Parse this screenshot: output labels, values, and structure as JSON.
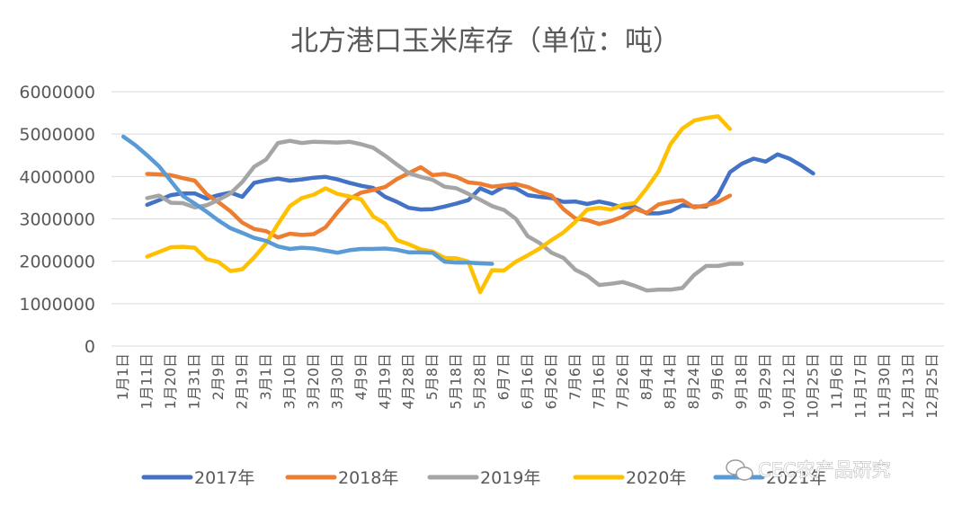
{
  "chart_data": {
    "type": "line",
    "title": "北方港口玉米库存（单位：吨）",
    "xlabel": "",
    "ylabel": "",
    "ylim": [
      0,
      6000000
    ],
    "yticks": [
      0,
      1000000,
      2000000,
      3000000,
      4000000,
      5000000,
      6000000
    ],
    "ytick_labels": [
      "0",
      "1000000",
      "2000000",
      "3000000",
      "4000000",
      "5000000",
      "6000000"
    ],
    "grid": true,
    "legend_position": "bottom",
    "x": [
      "1月1日",
      "1月11日",
      "1月20日",
      "1月31日",
      "2月9日",
      "2月19日",
      "3月1日",
      "3月10日",
      "3月20日",
      "3月30日",
      "4月9日",
      "4月19日",
      "4月28日",
      "5月8日",
      "5月18日",
      "5月28日",
      "6月7日",
      "6月16日",
      "6月26日",
      "7月6日",
      "7月16日",
      "7月26日",
      "8月4日",
      "8月14日",
      "8月24日",
      "9月6日",
      "9月18日",
      "9月29日",
      "10月12日",
      "10月25日",
      "11月6日",
      "11月17日",
      "11月30日",
      "12月13日",
      "12月25日"
    ],
    "series": [
      {
        "name": "2017年",
        "color": "#4472C4",
        "points": [
          [
            1.0,
            3330000
          ],
          [
            1.5,
            3440000
          ],
          [
            2.0,
            3560000
          ],
          [
            2.5,
            3600000
          ],
          [
            3.0,
            3600000
          ],
          [
            3.5,
            3480000
          ],
          [
            4.0,
            3560000
          ],
          [
            4.5,
            3620000
          ],
          [
            5.0,
            3520000
          ],
          [
            5.5,
            3850000
          ],
          [
            6.0,
            3910000
          ],
          [
            6.5,
            3950000
          ],
          [
            7.0,
            3900000
          ],
          [
            7.5,
            3930000
          ],
          [
            8.0,
            3970000
          ],
          [
            8.5,
            3990000
          ],
          [
            9.0,
            3930000
          ],
          [
            9.5,
            3850000
          ],
          [
            10.0,
            3780000
          ],
          [
            10.5,
            3730000
          ],
          [
            11.0,
            3520000
          ],
          [
            11.5,
            3400000
          ],
          [
            12.0,
            3260000
          ],
          [
            12.5,
            3220000
          ],
          [
            13.0,
            3230000
          ],
          [
            13.5,
            3290000
          ],
          [
            14.0,
            3360000
          ],
          [
            14.5,
            3440000
          ],
          [
            15.0,
            3720000
          ],
          [
            15.5,
            3600000
          ],
          [
            16.0,
            3760000
          ],
          [
            16.5,
            3720000
          ],
          [
            17.0,
            3560000
          ],
          [
            17.5,
            3520000
          ],
          [
            18.0,
            3490000
          ],
          [
            18.5,
            3400000
          ],
          [
            19.0,
            3410000
          ],
          [
            19.5,
            3350000
          ],
          [
            20.0,
            3410000
          ],
          [
            20.5,
            3350000
          ],
          [
            21.0,
            3260000
          ],
          [
            21.5,
            3280000
          ],
          [
            22.0,
            3130000
          ],
          [
            22.5,
            3130000
          ],
          [
            23.0,
            3180000
          ],
          [
            23.5,
            3320000
          ],
          [
            24.0,
            3290000
          ],
          [
            24.5,
            3290000
          ],
          [
            25.0,
            3560000
          ],
          [
            25.5,
            4100000
          ],
          [
            26.0,
            4300000
          ],
          [
            26.5,
            4420000
          ],
          [
            27.0,
            4350000
          ],
          [
            27.5,
            4520000
          ],
          [
            28.0,
            4420000
          ],
          [
            28.5,
            4260000
          ],
          [
            29.0,
            4070000
          ]
        ]
      },
      {
        "name": "2018年",
        "color": "#ED7D31",
        "points": [
          [
            1.0,
            4060000
          ],
          [
            1.5,
            4050000
          ],
          [
            2.0,
            4030000
          ],
          [
            2.5,
            3960000
          ],
          [
            3.0,
            3900000
          ],
          [
            3.5,
            3580000
          ],
          [
            4.0,
            3390000
          ],
          [
            4.5,
            3180000
          ],
          [
            5.0,
            2910000
          ],
          [
            5.5,
            2760000
          ],
          [
            6.0,
            2710000
          ],
          [
            6.5,
            2560000
          ],
          [
            7.0,
            2650000
          ],
          [
            7.5,
            2620000
          ],
          [
            8.0,
            2640000
          ],
          [
            8.5,
            2800000
          ],
          [
            9.0,
            3150000
          ],
          [
            9.5,
            3470000
          ],
          [
            10.0,
            3620000
          ],
          [
            10.5,
            3680000
          ],
          [
            11.0,
            3750000
          ],
          [
            11.5,
            3940000
          ],
          [
            12.0,
            4080000
          ],
          [
            12.5,
            4220000
          ],
          [
            13.0,
            4030000
          ],
          [
            13.5,
            4060000
          ],
          [
            14.0,
            3990000
          ],
          [
            14.5,
            3860000
          ],
          [
            15.0,
            3830000
          ],
          [
            15.5,
            3760000
          ],
          [
            16.0,
            3790000
          ],
          [
            16.5,
            3820000
          ],
          [
            17.0,
            3750000
          ],
          [
            17.5,
            3630000
          ],
          [
            18.0,
            3550000
          ],
          [
            18.5,
            3230000
          ],
          [
            19.0,
            3010000
          ],
          [
            19.5,
            2970000
          ],
          [
            20.0,
            2880000
          ],
          [
            20.5,
            2950000
          ],
          [
            21.0,
            3050000
          ],
          [
            21.5,
            3240000
          ],
          [
            22.0,
            3140000
          ],
          [
            22.5,
            3340000
          ],
          [
            23.0,
            3400000
          ],
          [
            23.5,
            3440000
          ],
          [
            24.0,
            3270000
          ],
          [
            24.5,
            3320000
          ],
          [
            25.0,
            3400000
          ],
          [
            25.5,
            3550000
          ]
        ]
      },
      {
        "name": "2019年",
        "color": "#A5A5A5",
        "points": [
          [
            1.0,
            3490000
          ],
          [
            1.5,
            3550000
          ],
          [
            2.0,
            3380000
          ],
          [
            2.5,
            3370000
          ],
          [
            3.0,
            3270000
          ],
          [
            3.5,
            3320000
          ],
          [
            4.0,
            3450000
          ],
          [
            4.5,
            3600000
          ],
          [
            5.0,
            3870000
          ],
          [
            5.5,
            4230000
          ],
          [
            6.0,
            4400000
          ],
          [
            6.5,
            4790000
          ],
          [
            7.0,
            4840000
          ],
          [
            7.5,
            4790000
          ],
          [
            8.0,
            4820000
          ],
          [
            8.5,
            4810000
          ],
          [
            9.0,
            4800000
          ],
          [
            9.5,
            4820000
          ],
          [
            10.0,
            4760000
          ],
          [
            10.5,
            4680000
          ],
          [
            11.0,
            4490000
          ],
          [
            11.5,
            4280000
          ],
          [
            12.0,
            4080000
          ],
          [
            12.5,
            3990000
          ],
          [
            13.0,
            3920000
          ],
          [
            13.5,
            3760000
          ],
          [
            14.0,
            3720000
          ],
          [
            14.5,
            3590000
          ],
          [
            15.0,
            3450000
          ],
          [
            15.5,
            3300000
          ],
          [
            16.0,
            3210000
          ],
          [
            16.5,
            3000000
          ],
          [
            17.0,
            2590000
          ],
          [
            17.5,
            2430000
          ],
          [
            18.0,
            2200000
          ],
          [
            18.5,
            2080000
          ],
          [
            19.0,
            1800000
          ],
          [
            19.5,
            1660000
          ],
          [
            20.0,
            1440000
          ],
          [
            20.5,
            1470000
          ],
          [
            21.0,
            1510000
          ],
          [
            21.5,
            1420000
          ],
          [
            22.0,
            1310000
          ],
          [
            22.5,
            1330000
          ],
          [
            23.0,
            1330000
          ],
          [
            23.5,
            1370000
          ],
          [
            24.0,
            1680000
          ],
          [
            24.5,
            1890000
          ],
          [
            25.0,
            1890000
          ],
          [
            25.5,
            1940000
          ],
          [
            26.0,
            1940000
          ]
        ]
      },
      {
        "name": "2020年",
        "color": "#FFC000",
        "points": [
          [
            1.0,
            2110000
          ],
          [
            1.5,
            2220000
          ],
          [
            2.0,
            2330000
          ],
          [
            2.5,
            2340000
          ],
          [
            3.0,
            2320000
          ],
          [
            3.5,
            2050000
          ],
          [
            4.0,
            1980000
          ],
          [
            4.5,
            1770000
          ],
          [
            5.0,
            1810000
          ],
          [
            5.5,
            2090000
          ],
          [
            6.0,
            2420000
          ],
          [
            6.5,
            2880000
          ],
          [
            7.0,
            3300000
          ],
          [
            7.5,
            3490000
          ],
          [
            8.0,
            3570000
          ],
          [
            8.5,
            3720000
          ],
          [
            9.0,
            3590000
          ],
          [
            9.5,
            3530000
          ],
          [
            10.0,
            3460000
          ],
          [
            10.5,
            3060000
          ],
          [
            11.0,
            2890000
          ],
          [
            11.5,
            2500000
          ],
          [
            12.0,
            2400000
          ],
          [
            12.5,
            2280000
          ],
          [
            13.0,
            2230000
          ],
          [
            13.5,
            2080000
          ],
          [
            14.0,
            2070000
          ],
          [
            14.5,
            1990000
          ],
          [
            15.0,
            1270000
          ],
          [
            15.5,
            1790000
          ],
          [
            16.0,
            1780000
          ],
          [
            16.5,
            1990000
          ],
          [
            17.0,
            2140000
          ],
          [
            17.5,
            2300000
          ],
          [
            18.0,
            2500000
          ],
          [
            18.5,
            2680000
          ],
          [
            19.0,
            2930000
          ],
          [
            19.5,
            3220000
          ],
          [
            20.0,
            3260000
          ],
          [
            20.5,
            3220000
          ],
          [
            21.0,
            3330000
          ],
          [
            21.5,
            3370000
          ],
          [
            22.0,
            3720000
          ],
          [
            22.5,
            4120000
          ],
          [
            23.0,
            4760000
          ],
          [
            23.5,
            5130000
          ],
          [
            24.0,
            5320000
          ],
          [
            24.5,
            5380000
          ],
          [
            25.0,
            5420000
          ],
          [
            25.5,
            5120000
          ]
        ]
      },
      {
        "name": "2021年",
        "color": "#5B9BD5",
        "points": [
          [
            0.0,
            4940000
          ],
          [
            0.5,
            4740000
          ],
          [
            1.0,
            4500000
          ],
          [
            1.5,
            4240000
          ],
          [
            2.0,
            3890000
          ],
          [
            2.5,
            3540000
          ],
          [
            3.0,
            3360000
          ],
          [
            3.5,
            3170000
          ],
          [
            4.0,
            2960000
          ],
          [
            4.5,
            2780000
          ],
          [
            5.0,
            2670000
          ],
          [
            5.5,
            2550000
          ],
          [
            6.0,
            2480000
          ],
          [
            6.5,
            2350000
          ],
          [
            7.0,
            2290000
          ],
          [
            7.5,
            2320000
          ],
          [
            8.0,
            2300000
          ],
          [
            8.5,
            2250000
          ],
          [
            9.0,
            2200000
          ],
          [
            9.5,
            2260000
          ],
          [
            10.0,
            2290000
          ],
          [
            10.5,
            2290000
          ],
          [
            11.0,
            2300000
          ],
          [
            11.5,
            2270000
          ],
          [
            12.0,
            2210000
          ],
          [
            12.5,
            2210000
          ],
          [
            13.0,
            2200000
          ],
          [
            13.5,
            1990000
          ],
          [
            14.0,
            1970000
          ],
          [
            14.5,
            1970000
          ],
          [
            15.0,
            1950000
          ],
          [
            15.5,
            1940000
          ]
        ]
      }
    ]
  },
  "watermark": {
    "text": "CEC农产品研究"
  }
}
